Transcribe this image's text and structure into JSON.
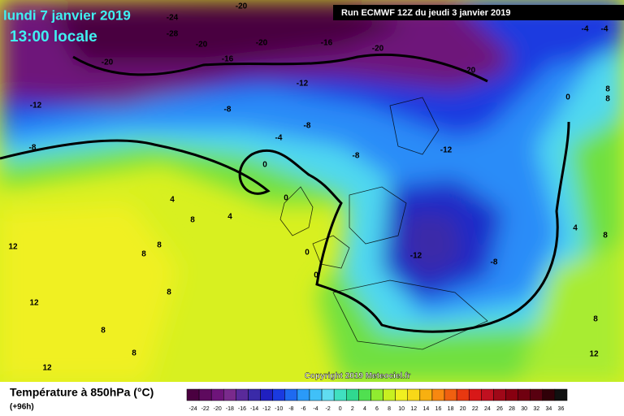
{
  "header": {
    "date": "lundi 7 janvier 2019",
    "time": "13:00 locale",
    "run": "Run ECMWF 12Z du jeudi 3 janvier 2019",
    "copyright": "Copyright 2019 Meteociel.fr"
  },
  "footer": {
    "title": "Température à 850hPa (°C)",
    "lead": "(+96h)"
  },
  "legend": {
    "values": [
      -24,
      -22,
      -20,
      -18,
      -16,
      -14,
      -12,
      -10,
      -8,
      -6,
      -4,
      -2,
      0,
      2,
      4,
      6,
      8,
      10,
      12,
      14,
      16,
      18,
      20,
      22,
      24,
      26,
      28,
      30,
      32,
      34,
      36
    ],
    "colors": [
      "#4a0040",
      "#5e0a5e",
      "#6e147a",
      "#7a2a8c",
      "#5a2a9a",
      "#3a2aa8",
      "#2020c0",
      "#1a3ae0",
      "#1e6af0",
      "#2a9af8",
      "#40c0f8",
      "#60dcf0",
      "#40e0c0",
      "#30d890",
      "#50e050",
      "#90ec30",
      "#c8f020",
      "#f0f020",
      "#f8d818",
      "#f8b010",
      "#f88810",
      "#f06010",
      "#e83810",
      "#d81818",
      "#c01020",
      "#a00818",
      "#880010",
      "#700010",
      "#580010",
      "#300008",
      "#101010"
    ]
  },
  "map_labels": [
    -24,
    -28,
    -20,
    -20,
    -16,
    -20,
    -16,
    -20,
    -20,
    -20,
    -12,
    -12,
    -8,
    -8,
    -8,
    -4,
    -8,
    -12,
    0,
    0,
    4,
    8,
    4,
    12,
    8,
    8,
    0,
    -12,
    -8,
    0,
    12,
    8,
    8,
    8,
    0,
    8,
    8,
    4,
    8,
    8,
    12,
    12,
    -4,
    -4
  ]
}
